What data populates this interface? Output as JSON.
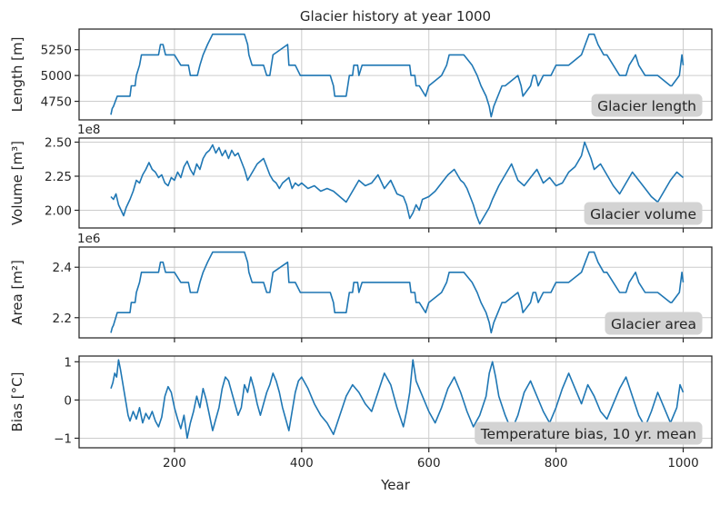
{
  "chart_data": [
    {
      "type": "line",
      "title": "Glacier history at year 1000",
      "ylabel": "Length [m]",
      "badge": "Glacier length",
      "xlim": [
        50,
        1045
      ],
      "ylim": [
        4570,
        5450
      ],
      "yticks": [
        4750,
        5000,
        5250
      ],
      "ytick_labels": [
        "4750",
        "5000",
        "5250"
      ],
      "exponent": "",
      "series": [
        {
          "x": [
            100,
            102,
            104,
            110,
            112,
            130,
            132,
            138,
            140,
            145,
            148,
            160,
            175,
            178,
            182,
            186,
            200,
            210,
            222,
            225,
            236,
            240,
            245,
            252,
            260,
            270,
            290,
            300,
            310,
            315,
            317,
            322,
            340,
            345,
            350,
            355,
            378,
            380,
            390,
            398,
            400,
            420,
            445,
            450,
            452,
            470,
            475,
            480,
            482,
            488,
            490,
            495,
            500,
            520,
            570,
            572,
            578,
            580,
            585,
            595,
            600,
            620,
            628,
            632,
            640,
            650,
            655,
            668,
            676,
            682,
            690,
            695,
            698,
            700,
            702,
            715,
            720,
            740,
            745,
            748,
            760,
            764,
            768,
            772,
            780,
            792,
            800,
            820,
            840,
            846,
            852,
            860,
            866,
            875,
            880,
            890,
            900,
            910,
            915,
            925,
            930,
            940,
            960,
            980,
            982,
            994,
            996,
            998,
            1000
          ],
          "values": [
            4620,
            4680,
            4700,
            4800,
            4800,
            4800,
            4900,
            4900,
            5000,
            5100,
            5200,
            5200,
            5200,
            5300,
            5300,
            5200,
            5200,
            5100,
            5100,
            5000,
            5000,
            5100,
            5200,
            5300,
            5400,
            5400,
            5400,
            5400,
            5400,
            5300,
            5200,
            5100,
            5100,
            5000,
            5000,
            5200,
            5300,
            5100,
            5100,
            5000,
            5000,
            5000,
            5000,
            4900,
            4800,
            4800,
            5000,
            5000,
            5100,
            5100,
            5000,
            5100,
            5100,
            5100,
            5100,
            5000,
            5000,
            4900,
            4900,
            4800,
            4900,
            5000,
            5100,
            5200,
            5200,
            5200,
            5200,
            5100,
            5000,
            4900,
            4800,
            4700,
            4600,
            4650,
            4700,
            4900,
            4900,
            5000,
            4900,
            4800,
            4900,
            5000,
            5000,
            4900,
            5000,
            5000,
            5100,
            5100,
            5200,
            5300,
            5400,
            5400,
            5300,
            5200,
            5200,
            5100,
            5000,
            5000,
            5100,
            5200,
            5100,
            5000,
            5000,
            4900,
            4900,
            5000,
            5100,
            5200,
            5100
          ]
        }
      ]
    },
    {
      "type": "line",
      "title": "",
      "ylabel": "Volume [m³]",
      "badge": "Glacier volume",
      "xlim": [
        50,
        1045
      ],
      "ylim": [
        1.87,
        2.53
      ],
      "yticks": [
        2.0,
        2.25,
        2.5
      ],
      "ytick_labels": [
        "2.00",
        "2.25",
        "2.50"
      ],
      "exponent": "1e8",
      "series": [
        {
          "x": [
            100,
            104,
            108,
            112,
            116,
            120,
            124,
            130,
            135,
            140,
            145,
            150,
            155,
            160,
            165,
            170,
            175,
            180,
            185,
            190,
            195,
            200,
            205,
            210,
            215,
            220,
            225,
            230,
            235,
            240,
            245,
            250,
            255,
            260,
            265,
            270,
            275,
            280,
            285,
            290,
            295,
            300,
            305,
            310,
            315,
            320,
            325,
            330,
            335,
            340,
            345,
            350,
            355,
            360,
            365,
            370,
            375,
            380,
            385,
            390,
            395,
            400,
            410,
            420,
            430,
            440,
            450,
            460,
            470,
            480,
            490,
            500,
            510,
            520,
            530,
            540,
            550,
            560,
            565,
            570,
            575,
            580,
            585,
            590,
            600,
            610,
            620,
            630,
            640,
            645,
            650,
            655,
            660,
            665,
            670,
            675,
            680,
            685,
            690,
            695,
            700,
            710,
            720,
            730,
            740,
            750,
            760,
            770,
            780,
            790,
            800,
            810,
            820,
            830,
            840,
            845,
            850,
            855,
            860,
            870,
            880,
            890,
            900,
            910,
            920,
            930,
            940,
            950,
            960,
            970,
            980,
            990,
            995,
            1000
          ],
          "values": [
            2.1,
            2.08,
            2.12,
            2.04,
            2.0,
            1.96,
            2.02,
            2.08,
            2.14,
            2.22,
            2.2,
            2.26,
            2.3,
            2.35,
            2.3,
            2.28,
            2.24,
            2.26,
            2.2,
            2.18,
            2.24,
            2.22,
            2.28,
            2.24,
            2.32,
            2.36,
            2.3,
            2.26,
            2.34,
            2.3,
            2.38,
            2.42,
            2.44,
            2.48,
            2.42,
            2.46,
            2.4,
            2.44,
            2.38,
            2.44,
            2.4,
            2.42,
            2.36,
            2.3,
            2.22,
            2.26,
            2.3,
            2.34,
            2.36,
            2.38,
            2.32,
            2.26,
            2.22,
            2.2,
            2.16,
            2.2,
            2.22,
            2.24,
            2.16,
            2.2,
            2.18,
            2.2,
            2.16,
            2.18,
            2.14,
            2.16,
            2.14,
            2.1,
            2.06,
            2.14,
            2.22,
            2.18,
            2.2,
            2.26,
            2.16,
            2.22,
            2.12,
            2.1,
            2.04,
            1.94,
            1.98,
            2.04,
            2.0,
            2.08,
            2.1,
            2.14,
            2.2,
            2.26,
            2.3,
            2.26,
            2.22,
            2.2,
            2.16,
            2.1,
            2.04,
            1.96,
            1.9,
            1.94,
            1.98,
            2.02,
            2.08,
            2.18,
            2.26,
            2.34,
            2.22,
            2.18,
            2.24,
            2.3,
            2.2,
            2.24,
            2.18,
            2.2,
            2.28,
            2.32,
            2.4,
            2.5,
            2.44,
            2.38,
            2.3,
            2.34,
            2.26,
            2.18,
            2.12,
            2.2,
            2.28,
            2.22,
            2.16,
            2.1,
            2.06,
            2.14,
            2.22,
            2.28,
            2.26,
            2.24
          ]
        }
      ]
    },
    {
      "type": "line",
      "title": "",
      "ylabel": "Area [m²]",
      "badge": "Glacier area",
      "xlim": [
        50,
        1045
      ],
      "ylim": [
        2.12,
        2.48
      ],
      "yticks": [
        2.2,
        2.4
      ],
      "ytick_labels": [
        "2.2",
        "2.4"
      ],
      "exponent": "1e6",
      "series": [
        {
          "x": [
            100,
            102,
            104,
            110,
            112,
            130,
            132,
            138,
            140,
            145,
            148,
            160,
            175,
            178,
            182,
            186,
            200,
            210,
            222,
            225,
            236,
            240,
            245,
            252,
            260,
            270,
            290,
            300,
            310,
            315,
            317,
            322,
            340,
            345,
            350,
            355,
            378,
            380,
            390,
            398,
            400,
            420,
            445,
            450,
            452,
            470,
            475,
            480,
            482,
            488,
            490,
            495,
            500,
            520,
            570,
            572,
            578,
            580,
            585,
            595,
            600,
            620,
            628,
            632,
            640,
            650,
            655,
            668,
            676,
            682,
            690,
            695,
            698,
            700,
            702,
            715,
            720,
            740,
            745,
            748,
            760,
            764,
            768,
            772,
            780,
            792,
            800,
            820,
            840,
            846,
            852,
            860,
            866,
            875,
            880,
            890,
            900,
            910,
            915,
            925,
            930,
            940,
            960,
            980,
            982,
            994,
            996,
            998,
            1000
          ],
          "values": [
            2.14,
            2.16,
            2.17,
            2.22,
            2.22,
            2.22,
            2.26,
            2.26,
            2.3,
            2.34,
            2.38,
            2.38,
            2.38,
            2.42,
            2.42,
            2.38,
            2.38,
            2.34,
            2.34,
            2.3,
            2.3,
            2.34,
            2.38,
            2.42,
            2.46,
            2.46,
            2.46,
            2.46,
            2.46,
            2.42,
            2.38,
            2.34,
            2.34,
            2.3,
            2.3,
            2.38,
            2.42,
            2.34,
            2.34,
            2.3,
            2.3,
            2.3,
            2.3,
            2.26,
            2.22,
            2.22,
            2.3,
            2.3,
            2.34,
            2.34,
            2.3,
            2.34,
            2.34,
            2.34,
            2.34,
            2.3,
            2.3,
            2.26,
            2.26,
            2.22,
            2.26,
            2.3,
            2.34,
            2.38,
            2.38,
            2.38,
            2.38,
            2.34,
            2.3,
            2.26,
            2.22,
            2.18,
            2.14,
            2.16,
            2.18,
            2.26,
            2.26,
            2.3,
            2.26,
            2.22,
            2.26,
            2.3,
            2.3,
            2.26,
            2.3,
            2.3,
            2.34,
            2.34,
            2.38,
            2.42,
            2.46,
            2.46,
            2.42,
            2.38,
            2.38,
            2.34,
            2.3,
            2.3,
            2.34,
            2.38,
            2.34,
            2.3,
            2.3,
            2.26,
            2.26,
            2.3,
            2.34,
            2.38,
            2.34
          ]
        }
      ]
    },
    {
      "type": "line",
      "title": "",
      "ylabel": "Bias [°C]",
      "xlabel": "Year",
      "badge": "Temperature bias, 10 yr. mean",
      "xlim": [
        50,
        1045
      ],
      "ylim": [
        -1.25,
        1.15
      ],
      "yticks": [
        -1,
        0,
        1
      ],
      "ytick_labels": [
        "−1",
        "0",
        "1"
      ],
      "xticks": [
        200,
        400,
        600,
        800,
        1000
      ],
      "xtick_labels": [
        "200",
        "400",
        "600",
        "800",
        "1000"
      ],
      "exponent": "",
      "series": [
        {
          "x": [
            100,
            103,
            106,
            109,
            112,
            115,
            118,
            121,
            124,
            127,
            130,
            135,
            140,
            145,
            150,
            155,
            160,
            165,
            170,
            175,
            180,
            185,
            190,
            195,
            200,
            205,
            210,
            215,
            220,
            225,
            230,
            235,
            240,
            245,
            250,
            255,
            260,
            265,
            270,
            275,
            280,
            285,
            290,
            295,
            300,
            305,
            310,
            315,
            320,
            325,
            330,
            335,
            340,
            345,
            350,
            355,
            360,
            365,
            370,
            375,
            380,
            385,
            390,
            395,
            400,
            410,
            420,
            430,
            440,
            450,
            460,
            470,
            480,
            490,
            500,
            510,
            520,
            530,
            540,
            550,
            560,
            565,
            570,
            575,
            580,
            590,
            600,
            610,
            620,
            630,
            640,
            650,
            660,
            670,
            680,
            690,
            695,
            700,
            705,
            710,
            720,
            730,
            740,
            750,
            760,
            770,
            780,
            790,
            800,
            810,
            820,
            830,
            840,
            850,
            860,
            870,
            880,
            890,
            900,
            910,
            920,
            930,
            940,
            950,
            960,
            970,
            980,
            990,
            995,
            1000
          ],
          "values": [
            0.3,
            0.45,
            0.7,
            0.6,
            1.05,
            0.8,
            0.5,
            0.2,
            -0.1,
            -0.4,
            -0.55,
            -0.3,
            -0.5,
            -0.2,
            -0.6,
            -0.35,
            -0.5,
            -0.3,
            -0.55,
            -0.7,
            -0.45,
            0.1,
            0.35,
            0.2,
            -0.2,
            -0.5,
            -0.75,
            -0.4,
            -1.0,
            -0.6,
            -0.3,
            0.1,
            -0.2,
            0.3,
            0.0,
            -0.4,
            -0.8,
            -0.5,
            -0.2,
            0.3,
            0.6,
            0.5,
            0.2,
            -0.1,
            -0.4,
            -0.2,
            0.4,
            0.2,
            0.6,
            0.3,
            -0.1,
            -0.4,
            -0.1,
            0.2,
            0.4,
            0.7,
            0.5,
            0.2,
            -0.2,
            -0.5,
            -0.8,
            -0.3,
            0.2,
            0.5,
            0.6,
            0.3,
            -0.1,
            -0.4,
            -0.6,
            -0.9,
            -0.4,
            0.1,
            0.4,
            0.2,
            -0.1,
            -0.3,
            0.2,
            0.7,
            0.4,
            -0.2,
            -0.7,
            -0.3,
            0.2,
            1.05,
            0.5,
            0.1,
            -0.3,
            -0.6,
            -0.2,
            0.3,
            0.6,
            0.2,
            -0.3,
            -0.7,
            -0.4,
            0.1,
            0.7,
            1.0,
            0.6,
            0.1,
            -0.4,
            -0.8,
            -0.4,
            0.2,
            0.5,
            0.1,
            -0.3,
            -0.6,
            -0.2,
            0.3,
            0.7,
            0.3,
            -0.1,
            0.4,
            0.1,
            -0.3,
            -0.5,
            -0.1,
            0.3,
            0.6,
            0.1,
            -0.4,
            -0.7,
            -0.3,
            0.2,
            -0.2,
            -0.6,
            -0.2,
            0.4,
            0.2
          ]
        }
      ]
    }
  ]
}
